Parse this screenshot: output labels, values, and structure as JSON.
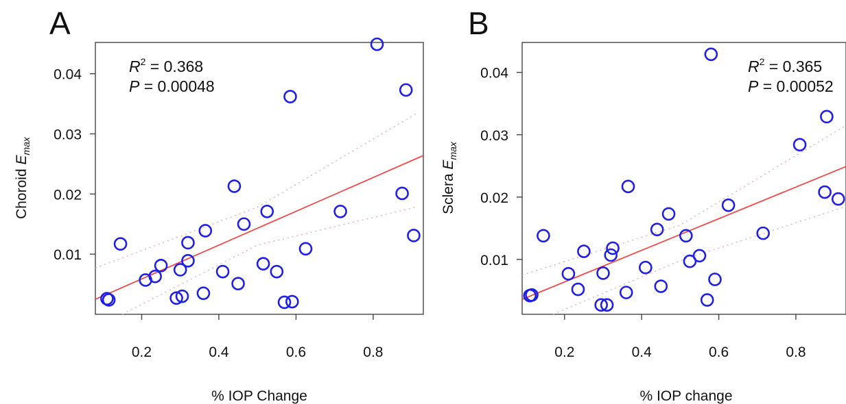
{
  "chart_data": [
    {
      "type": "scatter",
      "panel_label": "A",
      "xlabel": "% IOP Change",
      "ylabel_main": "Choroid ",
      "ylabel_var": "E",
      "ylabel_sub": "max",
      "xlim": [
        0.08,
        0.93
      ],
      "ylim": [
        0.0,
        0.0452
      ],
      "xticks": [
        0.2,
        0.4,
        0.6,
        0.8
      ],
      "xtick_labels": [
        "0.2",
        "0.4",
        "0.6",
        "0.8"
      ],
      "yticks": [
        0.01,
        0.02,
        0.03,
        0.04
      ],
      "ytick_labels": [
        "0.01",
        "0.02",
        "0.03",
        "0.04"
      ],
      "stats": {
        "r2_label": "R",
        "r2_exp": "2",
        "r2_value": " = 0.368",
        "p_label": "P",
        "p_value": " = 0.00048",
        "placement": "top-left"
      },
      "fit_line": {
        "x": [
          0.08,
          0.93
        ],
        "y": [
          0.0025,
          0.0264
        ]
      },
      "ci_upper": {
        "x": [
          0.08,
          0.5,
          0.91
        ],
        "y": [
          0.0077,
          0.0178,
          0.0333
        ]
      },
      "ci_lower": {
        "x": [
          0.15,
          0.5,
          0.91
        ],
        "y": [
          -0.0005,
          0.0115,
          0.0178
        ]
      },
      "points": {
        "x": [
          0.11,
          0.115,
          0.145,
          0.21,
          0.235,
          0.25,
          0.29,
          0.3,
          0.305,
          0.32,
          0.32,
          0.36,
          0.365,
          0.41,
          0.44,
          0.45,
          0.465,
          0.515,
          0.525,
          0.55,
          0.57,
          0.585,
          0.59,
          0.625,
          0.715,
          0.81,
          0.875,
          0.885,
          0.905
        ],
        "y": [
          0.0026,
          0.0024,
          0.0117,
          0.0057,
          0.0063,
          0.0081,
          0.0027,
          0.0074,
          0.003,
          0.0089,
          0.0119,
          0.0035,
          0.0139,
          0.0071,
          0.0213,
          0.0051,
          0.015,
          0.0084,
          0.0171,
          0.0071,
          0.002,
          0.0362,
          0.0021,
          0.0109,
          0.0171,
          0.0449,
          0.0201,
          0.0373,
          0.0131
        ]
      }
    },
    {
      "type": "scatter",
      "panel_label": "B",
      "xlabel": "% IOP change",
      "ylabel_main": "Sclera ",
      "ylabel_var": "E",
      "ylabel_sub": "max",
      "xlim": [
        0.09,
        0.93
      ],
      "ylim": [
        0.0012,
        0.0448
      ],
      "xticks": [
        0.2,
        0.4,
        0.6,
        0.8
      ],
      "xtick_labels": [
        "0.2",
        "0.4",
        "0.6",
        "0.8"
      ],
      "yticks": [
        0.01,
        0.02,
        0.03,
        0.04
      ],
      "ytick_labels": [
        "0.01",
        "0.02",
        "0.03",
        "0.04"
      ],
      "stats": {
        "r2_label": "R",
        "r2_exp": "2",
        "r2_value": " = 0.365",
        "p_label": "P",
        "p_value": " = 0.00052",
        "placement": "top-right"
      },
      "fit_line": {
        "x": [
          0.09,
          0.93
        ],
        "y": [
          0.0036,
          0.0249
        ]
      },
      "ci_upper": {
        "x": [
          0.09,
          0.5,
          0.93
        ],
        "y": [
          0.0075,
          0.0155,
          0.0315
        ]
      },
      "ci_lower": {
        "x": [
          0.17,
          0.5,
          0.93
        ],
        "y": [
          0.0012,
          0.0098,
          0.0185
        ]
      },
      "points": {
        "x": [
          0.11,
          0.115,
          0.145,
          0.21,
          0.235,
          0.25,
          0.295,
          0.3,
          0.31,
          0.32,
          0.325,
          0.36,
          0.365,
          0.41,
          0.44,
          0.45,
          0.47,
          0.515,
          0.525,
          0.55,
          0.57,
          0.58,
          0.59,
          0.625,
          0.715,
          0.81,
          0.875,
          0.88,
          0.91
        ],
        "y": [
          0.0042,
          0.0043,
          0.0138,
          0.0077,
          0.0052,
          0.0113,
          0.0027,
          0.0078,
          0.0027,
          0.0107,
          0.0118,
          0.0047,
          0.0217,
          0.0087,
          0.0148,
          0.0057,
          0.0173,
          0.0138,
          0.0097,
          0.0106,
          0.0035,
          0.0429,
          0.0068,
          0.0187,
          0.0142,
          0.0284,
          0.0208,
          0.0329,
          0.0197
        ]
      }
    }
  ]
}
